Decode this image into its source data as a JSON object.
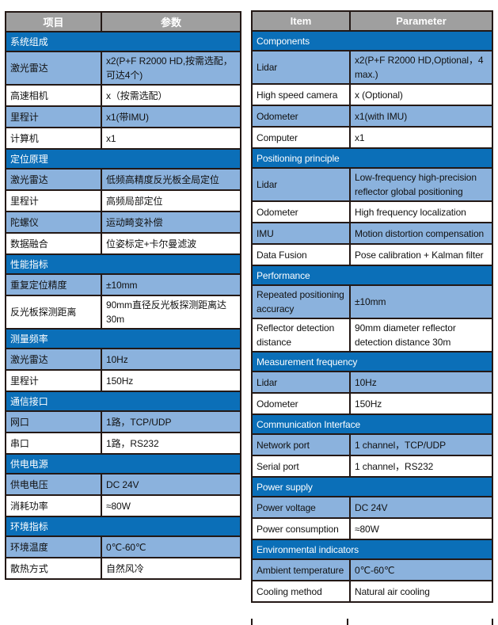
{
  "colors": {
    "page_bg": "#ffffff",
    "header_bg": "#9f9f9f",
    "header_text": "#ffffff",
    "section_bg": "#0b6fb8",
    "section_text": "#ffffff",
    "row_shaded_bg": "#8bb2dd",
    "row_plain_bg": "#ffffff",
    "border": "#231815",
    "text": "#111111"
  },
  "tables": [
    {
      "id": "chinese-spec",
      "headers": [
        "项目",
        "参数"
      ],
      "rows": [
        {
          "type": "section",
          "label": "系统组成"
        },
        {
          "type": "data",
          "item": "激光雷达",
          "param": "x2(P+F R2000 HD,按需选配，可达4个)"
        },
        {
          "type": "data",
          "item": "高速相机",
          "param": "x（按需选配）"
        },
        {
          "type": "data",
          "item": "里程计",
          "param": "x1(带IMU)"
        },
        {
          "type": "data",
          "item": "计算机",
          "param": "x1"
        },
        {
          "type": "section",
          "label": "定位原理"
        },
        {
          "type": "data",
          "item": "激光雷达",
          "param": "低频高精度反光板全局定位"
        },
        {
          "type": "data",
          "item": "里程计",
          "param": "高频局部定位"
        },
        {
          "type": "data",
          "item": "陀螺仪",
          "param": "运动畸变补偿"
        },
        {
          "type": "data",
          "item": "数据融合",
          "param": "位姿标定+卡尔曼滤波"
        },
        {
          "type": "section",
          "label": "性能指标"
        },
        {
          "type": "data",
          "item": "重复定位精度",
          "param": "±10mm"
        },
        {
          "type": "data",
          "item": "反光板探测距离",
          "param": "90mm直径反光板探测距离达30m"
        },
        {
          "type": "section",
          "label": "测量频率"
        },
        {
          "type": "data",
          "item": "激光雷达",
          "param": "10Hz"
        },
        {
          "type": "data",
          "item": "里程计",
          "param": "150Hz"
        },
        {
          "type": "section",
          "label": "通信接口"
        },
        {
          "type": "data",
          "item": "网口",
          "param": "1路，TCP/UDP"
        },
        {
          "type": "data",
          "item": "串口",
          "param": "1路，RS232"
        },
        {
          "type": "section",
          "label": "供电电源"
        },
        {
          "type": "data",
          "item": "供电电压",
          "param": "DC 24V"
        },
        {
          "type": "data",
          "item": "消耗功率",
          "param": "≈80W"
        },
        {
          "type": "section",
          "label": "环境指标"
        },
        {
          "type": "data",
          "item": "环境温度",
          "param": "0℃-60℃"
        },
        {
          "type": "data",
          "item": "散热方式",
          "param": "自然风冷"
        }
      ]
    },
    {
      "id": "english-spec",
      "headers": [
        "Item",
        "Parameter"
      ],
      "rows": [
        {
          "type": "section",
          "label": "Components"
        },
        {
          "type": "data",
          "item": "Lidar",
          "param": "x2(P+F R2000 HD,Optional，4 max.)"
        },
        {
          "type": "data",
          "item": "High speed camera",
          "param": "x (Optional)"
        },
        {
          "type": "data",
          "item": "Odometer",
          "param": "x1(with IMU)"
        },
        {
          "type": "data",
          "item": "Computer",
          "param": "x1"
        },
        {
          "type": "section",
          "label": "Positioning principle"
        },
        {
          "type": "data",
          "item": "Lidar",
          "param": "Low-frequency high-precision reflector global positioning"
        },
        {
          "type": "data",
          "item": "Odometer",
          "param": "High frequency localization"
        },
        {
          "type": "data",
          "item": "IMU",
          "param": "Motion distortion compensation"
        },
        {
          "type": "data",
          "item": "Data Fusion",
          "param": "Pose calibration + Kalman filter"
        },
        {
          "type": "section",
          "label": "Performance"
        },
        {
          "type": "data",
          "item": "Repeated positioning accuracy",
          "param": "±10mm"
        },
        {
          "type": "data",
          "item": "Reflector detection distance",
          "param": "90mm diameter reflector detection distance 30m"
        },
        {
          "type": "section",
          "label": "Measurement frequency"
        },
        {
          "type": "data",
          "item": "Lidar",
          "param": "10Hz"
        },
        {
          "type": "data",
          "item": "Odometer",
          "param": "150Hz"
        },
        {
          "type": "section",
          "label": "Communication Interface"
        },
        {
          "type": "data",
          "item": "Network port",
          "param": "1 channel，TCP/UDP"
        },
        {
          "type": "data",
          "item": "Serial port",
          "param": "1 channel，RS232"
        },
        {
          "type": "section",
          "label": "Power supply"
        },
        {
          "type": "data",
          "item": "Power voltage",
          "param": "DC 24V"
        },
        {
          "type": "data",
          "item": "Power consumption",
          "param": "≈80W"
        },
        {
          "type": "section",
          "label": "Environmental indicators"
        },
        {
          "type": "data",
          "item": "Ambient temperature",
          "param": "0℃-60℃"
        },
        {
          "type": "data",
          "item": "Cooling method",
          "param": "Natural air cooling"
        }
      ]
    }
  ]
}
